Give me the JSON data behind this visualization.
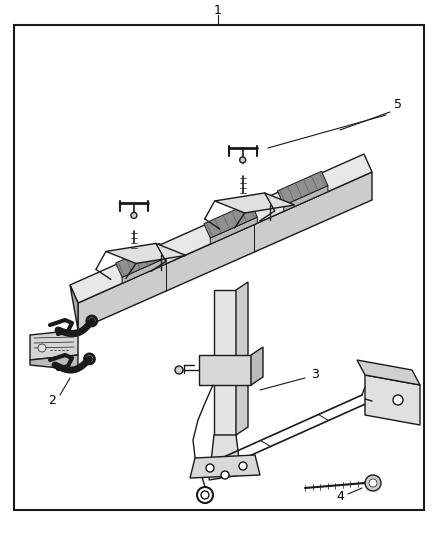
{
  "bg_color": "#ffffff",
  "line_color": "#1a1a1a",
  "gray_light": "#e8e8e8",
  "gray_mid": "#cccccc",
  "gray_dark": "#aaaaaa",
  "black": "#111111",
  "figsize": [
    4.38,
    5.33
  ],
  "dpi": 100
}
